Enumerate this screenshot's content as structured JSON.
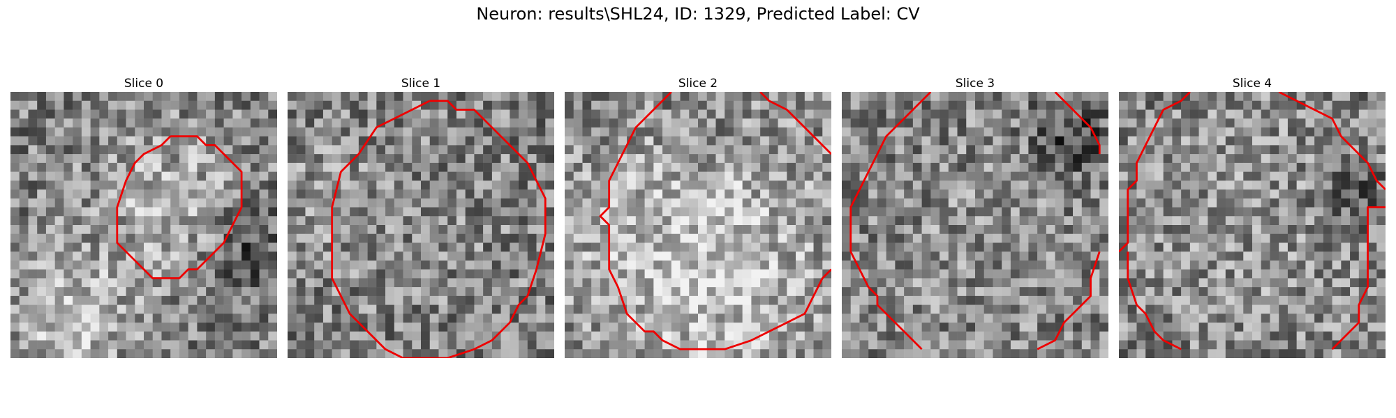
{
  "figure": {
    "title": "Neuron: results\\SHL24, ID: 1329, Predicted Label: CV",
    "grid_size": 30,
    "contour_color": "#ee0000",
    "colormap": "gray"
  },
  "slices": [
    {
      "title": "Slice 0",
      "seed": 11,
      "blobs": [
        [
          17,
          12,
          6,
          0.55
        ],
        [
          7,
          26,
          5,
          0.7
        ],
        [
          27,
          18,
          3,
          -0.6
        ]
      ],
      "contours": [
        [
          [
            18,
            5
          ],
          [
            21,
            5
          ],
          [
            22,
            6
          ],
          [
            23,
            6
          ],
          [
            26,
            9
          ],
          [
            26,
            13
          ],
          [
            25,
            15
          ],
          [
            24,
            17
          ],
          [
            22,
            19
          ],
          [
            21,
            20
          ],
          [
            20,
            20
          ],
          [
            19,
            21
          ],
          [
            16,
            21
          ],
          [
            15,
            20
          ],
          [
            14,
            19
          ],
          [
            12,
            17
          ],
          [
            12,
            15
          ],
          [
            12,
            13
          ],
          [
            13,
            10
          ],
          [
            14,
            8
          ],
          [
            15,
            7
          ],
          [
            17,
            6
          ],
          [
            18,
            5
          ]
        ]
      ]
    },
    {
      "title": "Slice 1",
      "seed": 23,
      "blobs": [
        [
          15,
          16,
          10,
          0.1
        ],
        [
          5,
          12,
          4,
          0.3
        ]
      ],
      "contours": [
        [
          [
            16,
            1
          ],
          [
            18,
            1
          ],
          [
            19,
            2
          ],
          [
            21,
            2
          ],
          [
            23,
            4
          ],
          [
            25,
            6
          ],
          [
            27,
            8
          ],
          [
            28,
            10
          ],
          [
            29,
            12
          ],
          [
            29,
            16
          ],
          [
            28,
            20
          ],
          [
            27,
            23
          ],
          [
            26,
            24
          ],
          [
            25,
            26
          ],
          [
            23,
            28
          ],
          [
            21,
            29
          ],
          [
            18,
            30
          ],
          [
            13,
            30
          ],
          [
            11,
            29
          ],
          [
            9,
            27
          ],
          [
            7,
            25
          ],
          [
            6,
            23
          ],
          [
            5,
            21
          ],
          [
            5,
            16
          ],
          [
            5,
            13
          ],
          [
            6,
            9
          ],
          [
            8,
            7
          ],
          [
            10,
            4
          ],
          [
            12,
            3
          ],
          [
            14,
            2
          ],
          [
            16,
            1
          ]
        ]
      ]
    },
    {
      "title": "Slice 2",
      "seed": 37,
      "blobs": [
        [
          15,
          19,
          11,
          0.8
        ],
        [
          15,
          5,
          3,
          -0.2
        ]
      ],
      "contours": [
        [
          [
            12,
            0
          ],
          [
            11,
            1
          ],
          [
            10,
            2
          ],
          [
            8,
            4
          ],
          [
            7,
            6
          ],
          [
            6,
            8
          ],
          [
            5,
            10
          ],
          [
            5,
            13
          ],
          [
            4,
            14
          ],
          [
            5,
            15
          ],
          [
            5,
            20
          ],
          [
            6,
            22
          ],
          [
            7,
            25
          ],
          [
            8,
            26
          ],
          [
            9,
            27
          ],
          [
            10,
            27
          ],
          [
            11,
            28
          ],
          [
            13,
            29
          ],
          [
            18,
            29
          ],
          [
            21,
            28
          ],
          [
            23,
            27
          ],
          [
            25,
            26
          ],
          [
            27,
            25
          ],
          [
            28,
            23
          ],
          [
            29,
            21
          ],
          [
            30,
            20
          ]
        ],
        [
          [
            22,
            0
          ],
          [
            23,
            1
          ],
          [
            25,
            2
          ],
          [
            30,
            7
          ]
        ]
      ]
    },
    {
      "title": "Slice 3",
      "seed": 51,
      "blobs": [
        [
          14,
          17,
          11,
          0.15
        ],
        [
          26,
          5,
          3,
          -0.7
        ]
      ],
      "contours": [
        [
          [
            10,
            0
          ],
          [
            9,
            1
          ],
          [
            8,
            2
          ],
          [
            7,
            3
          ],
          [
            5,
            5
          ],
          [
            4,
            7
          ],
          [
            3,
            9
          ],
          [
            2,
            11
          ],
          [
            1,
            13
          ],
          [
            1,
            16
          ],
          [
            1,
            18
          ],
          [
            2,
            20
          ],
          [
            3,
            22
          ],
          [
            4,
            23
          ],
          [
            4,
            24
          ],
          [
            5,
            25
          ],
          [
            6,
            26
          ],
          [
            8,
            28
          ],
          [
            9,
            29
          ]
        ],
        [
          [
            24,
            0
          ],
          [
            25,
            1
          ],
          [
            26,
            2
          ],
          [
            28,
            4
          ],
          [
            29,
            6
          ],
          [
            29,
            7
          ]
        ],
        [
          [
            29,
            18
          ],
          [
            28,
            21
          ],
          [
            28,
            23
          ],
          [
            27,
            24
          ],
          [
            26,
            25
          ],
          [
            25,
            26
          ],
          [
            24,
            28
          ],
          [
            22,
            29
          ]
        ]
      ]
    },
    {
      "title": "Slice 4",
      "seed": 67,
      "blobs": [
        [
          15,
          14,
          12,
          0.25
        ],
        [
          27,
          12,
          3,
          -0.5
        ]
      ],
      "contours": [
        [
          [
            8,
            0
          ],
          [
            7,
            1
          ],
          [
            5,
            2
          ],
          [
            4,
            4
          ],
          [
            3,
            6
          ],
          [
            2,
            8
          ],
          [
            2,
            10
          ],
          [
            1,
            11
          ],
          [
            1,
            17
          ],
          [
            0,
            18
          ]
        ],
        [
          [
            1,
            18
          ],
          [
            1,
            21
          ],
          [
            2,
            24
          ],
          [
            3,
            25
          ],
          [
            4,
            27
          ],
          [
            5,
            28
          ],
          [
            7,
            29
          ]
        ],
        [
          [
            18,
            0
          ],
          [
            20,
            1
          ],
          [
            22,
            2
          ],
          [
            24,
            3
          ],
          [
            25,
            5
          ],
          [
            27,
            7
          ],
          [
            28,
            8
          ],
          [
            29,
            10
          ],
          [
            30,
            11
          ]
        ],
        [
          [
            30,
            13
          ],
          [
            28,
            13
          ],
          [
            28,
            15
          ],
          [
            28,
            18
          ],
          [
            28,
            22
          ],
          [
            27,
            24
          ],
          [
            27,
            26
          ],
          [
            26,
            27
          ],
          [
            25,
            28
          ],
          [
            24,
            29
          ]
        ]
      ]
    }
  ]
}
